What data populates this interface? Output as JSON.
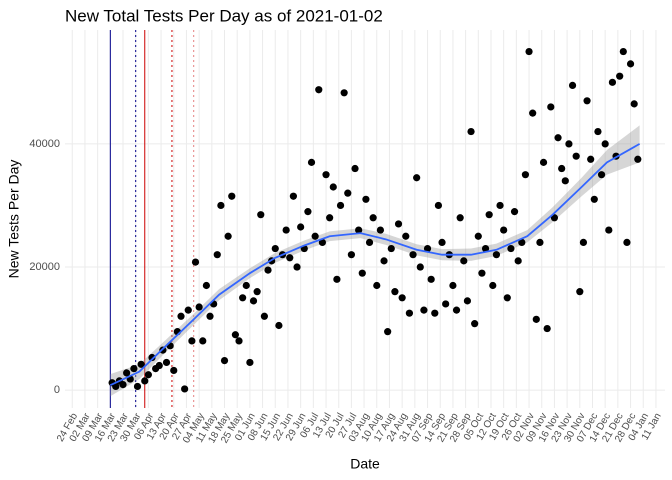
{
  "chart_data": {
    "type": "scatter",
    "title": "New Total Tests Per Day as of 2021-01-02",
    "x_label": "Date",
    "y_label": "New Tests Per Day",
    "color": "#000000",
    "grid": true,
    "xlim": [
      "20 Feb",
      "16 Jan"
    ],
    "ylim": [
      -2900,
      58500
    ],
    "yticks": [
      0,
      20000,
      40000
    ],
    "xticks": [
      "24 Feb",
      "02 Mar",
      "09 Mar",
      "16 Mar",
      "23 Mar",
      "30 Mar",
      "06 Apr",
      "13 Apr",
      "20 Apr",
      "27 Apr",
      "04 May",
      "11 May",
      "18 May",
      "25 May",
      "01 Jun",
      "08 Jun",
      "15 Jun",
      "22 Jun",
      "29 Jun",
      "06 Jul",
      "13 Jul",
      "20 Jul",
      "27 Jul",
      "03 Aug",
      "10 Aug",
      "17 Aug",
      "24 Aug",
      "31 Aug",
      "07 Sep",
      "14 Sep",
      "21 Sep",
      "28 Sep",
      "05 Oct",
      "12 Oct",
      "19 Oct",
      "26 Oct",
      "02 Nov",
      "09 Nov",
      "16 Nov",
      "23 Nov",
      "30 Nov",
      "07 Dec",
      "14 Dec",
      "21 Dec",
      "28 Dec",
      "04 Jan",
      "11 Jan"
    ],
    "x": [
      "17 Mar",
      "19 Mar",
      "21 Mar",
      "23 Mar",
      "25 Mar",
      "27 Mar",
      "29 Mar",
      "31 Mar",
      "02 Apr",
      "04 Apr",
      "06 Apr",
      "08 Apr",
      "10 Apr",
      "12 Apr",
      "14 Apr",
      "16 Apr",
      "18 Apr",
      "20 Apr",
      "22 Apr",
      "24 Apr",
      "26 Apr",
      "28 Apr",
      "30 Apr",
      "02 May",
      "04 May",
      "06 May",
      "08 May",
      "10 May",
      "12 May",
      "14 May",
      "16 May",
      "18 May",
      "20 May",
      "22 May",
      "24 May",
      "26 May",
      "28 May",
      "30 May",
      "01 Jun",
      "03 Jun",
      "05 Jun",
      "07 Jun",
      "09 Jun",
      "11 Jun",
      "13 Jun",
      "15 Jun",
      "17 Jun",
      "19 Jun",
      "21 Jun",
      "23 Jun",
      "25 Jun",
      "27 Jun",
      "29 Jun",
      "01 Jul",
      "03 Jul",
      "05 Jul",
      "07 Jul",
      "09 Jul",
      "11 Jul",
      "13 Jul",
      "15 Jul",
      "17 Jul",
      "19 Jul",
      "21 Jul",
      "23 Jul",
      "25 Jul",
      "27 Jul",
      "29 Jul",
      "31 Jul",
      "02 Aug",
      "04 Aug",
      "06 Aug",
      "08 Aug",
      "10 Aug",
      "12 Aug",
      "14 Aug",
      "16 Aug",
      "18 Aug",
      "20 Aug",
      "22 Aug",
      "24 Aug",
      "26 Aug",
      "28 Aug",
      "30 Aug",
      "01 Sep",
      "03 Sep",
      "05 Sep",
      "07 Sep",
      "09 Sep",
      "11 Sep",
      "13 Sep",
      "15 Sep",
      "17 Sep",
      "19 Sep",
      "21 Sep",
      "23 Sep",
      "25 Sep",
      "27 Sep",
      "29 Sep",
      "01 Oct",
      "03 Oct",
      "05 Oct",
      "07 Oct",
      "09 Oct",
      "11 Oct",
      "13 Oct",
      "15 Oct",
      "17 Oct",
      "19 Oct",
      "21 Oct",
      "23 Oct",
      "25 Oct",
      "27 Oct",
      "29 Oct",
      "31 Oct",
      "02 Nov",
      "04 Nov",
      "06 Nov",
      "08 Nov",
      "10 Nov",
      "12 Nov",
      "14 Nov",
      "16 Nov",
      "18 Nov",
      "20 Nov",
      "22 Nov",
      "24 Nov",
      "26 Nov",
      "28 Nov",
      "30 Nov",
      "02 Dec",
      "04 Dec",
      "06 Dec",
      "08 Dec",
      "10 Dec",
      "12 Dec",
      "14 Dec",
      "16 Dec",
      "18 Dec",
      "20 Dec",
      "22 Dec",
      "24 Dec",
      "26 Dec",
      "28 Dec",
      "30 Dec",
      "01 Jan"
    ],
    "values": [
      1200,
      600,
      1500,
      900,
      2800,
      1800,
      3500,
      600,
      4200,
      1500,
      2500,
      5300,
      3500,
      4000,
      6500,
      4500,
      7200,
      3200,
      9500,
      12000,
      200,
      13000,
      8000,
      20800,
      13500,
      8000,
      17000,
      12000,
      14000,
      22000,
      30000,
      4800,
      25000,
      31500,
      9000,
      8000,
      15000,
      17000,
      4500,
      14500,
      16000,
      28500,
      12000,
      19500,
      21000,
      23000,
      10500,
      22000,
      26000,
      21500,
      31500,
      20000,
      26500,
      23000,
      29000,
      37000,
      25000,
      48800,
      24000,
      35000,
      28000,
      33000,
      18000,
      30000,
      48300,
      32000,
      22000,
      36000,
      26000,
      19000,
      31000,
      24000,
      28000,
      17000,
      26000,
      21000,
      9500,
      23000,
      16000,
      27000,
      15000,
      25000,
      12500,
      22000,
      34500,
      20000,
      13000,
      23000,
      18000,
      12500,
      30000,
      24000,
      14000,
      22000,
      17000,
      13000,
      28000,
      21000,
      14500,
      42000,
      10800,
      25000,
      19000,
      23000,
      28500,
      17000,
      22000,
      30000,
      26000,
      15000,
      23000,
      29000,
      21000,
      24000,
      35000,
      55000,
      45000,
      11500,
      24000,
      37000,
      10000,
      46000,
      28000,
      41000,
      36000,
      34000,
      40000,
      49500,
      38000,
      16000,
      24000,
      47000,
      37500,
      31000,
      42000,
      35000,
      40000,
      26000,
      50000,
      38000,
      51000,
      55000,
      24000,
      53000,
      46500,
      37500
    ],
    "smooth": {
      "color": "#3366ff",
      "band_color": "#999999",
      "x": [
        "16 Mar",
        "01 Apr",
        "15 Apr",
        "01 May",
        "15 May",
        "01 Jun",
        "15 Jun",
        "01 Jul",
        "15 Jul",
        "01 Aug",
        "15 Aug",
        "01 Sep",
        "15 Sep",
        "01 Oct",
        "15 Oct",
        "01 Nov",
        "15 Nov",
        "01 Dec",
        "15 Dec",
        "02 Jan"
      ],
      "values": [
        800,
        3000,
        7000,
        11500,
        15500,
        19000,
        21500,
        23500,
        25000,
        25500,
        24500,
        22800,
        22000,
        22000,
        22800,
        25000,
        28500,
        33000,
        37000,
        40000
      ],
      "lower": [
        -1000,
        1800,
        6000,
        10600,
        14600,
        18200,
        20700,
        22700,
        24200,
        24700,
        23600,
        21900,
        21100,
        21000,
        21800,
        24000,
        27300,
        31500,
        35000,
        37000
      ],
      "upper": [
        2600,
        4200,
        8000,
        12400,
        16400,
        19800,
        22300,
        24300,
        25800,
        26300,
        25400,
        23700,
        22900,
        23000,
        23800,
        26000,
        29700,
        34500,
        39000,
        43000
      ]
    },
    "vlines": [
      {
        "x": "16 Mar",
        "color": "#00008b",
        "dashed": false
      },
      {
        "x": "30 Mar",
        "color": "#00008b",
        "dashed": true
      },
      {
        "x": "04 Apr",
        "color": "#cc0000",
        "dashed": false
      },
      {
        "x": "19 Apr",
        "color": "#cc0000",
        "dashed": true
      },
      {
        "x": "01 May",
        "color": "#e58080",
        "dashed": true
      }
    ]
  }
}
